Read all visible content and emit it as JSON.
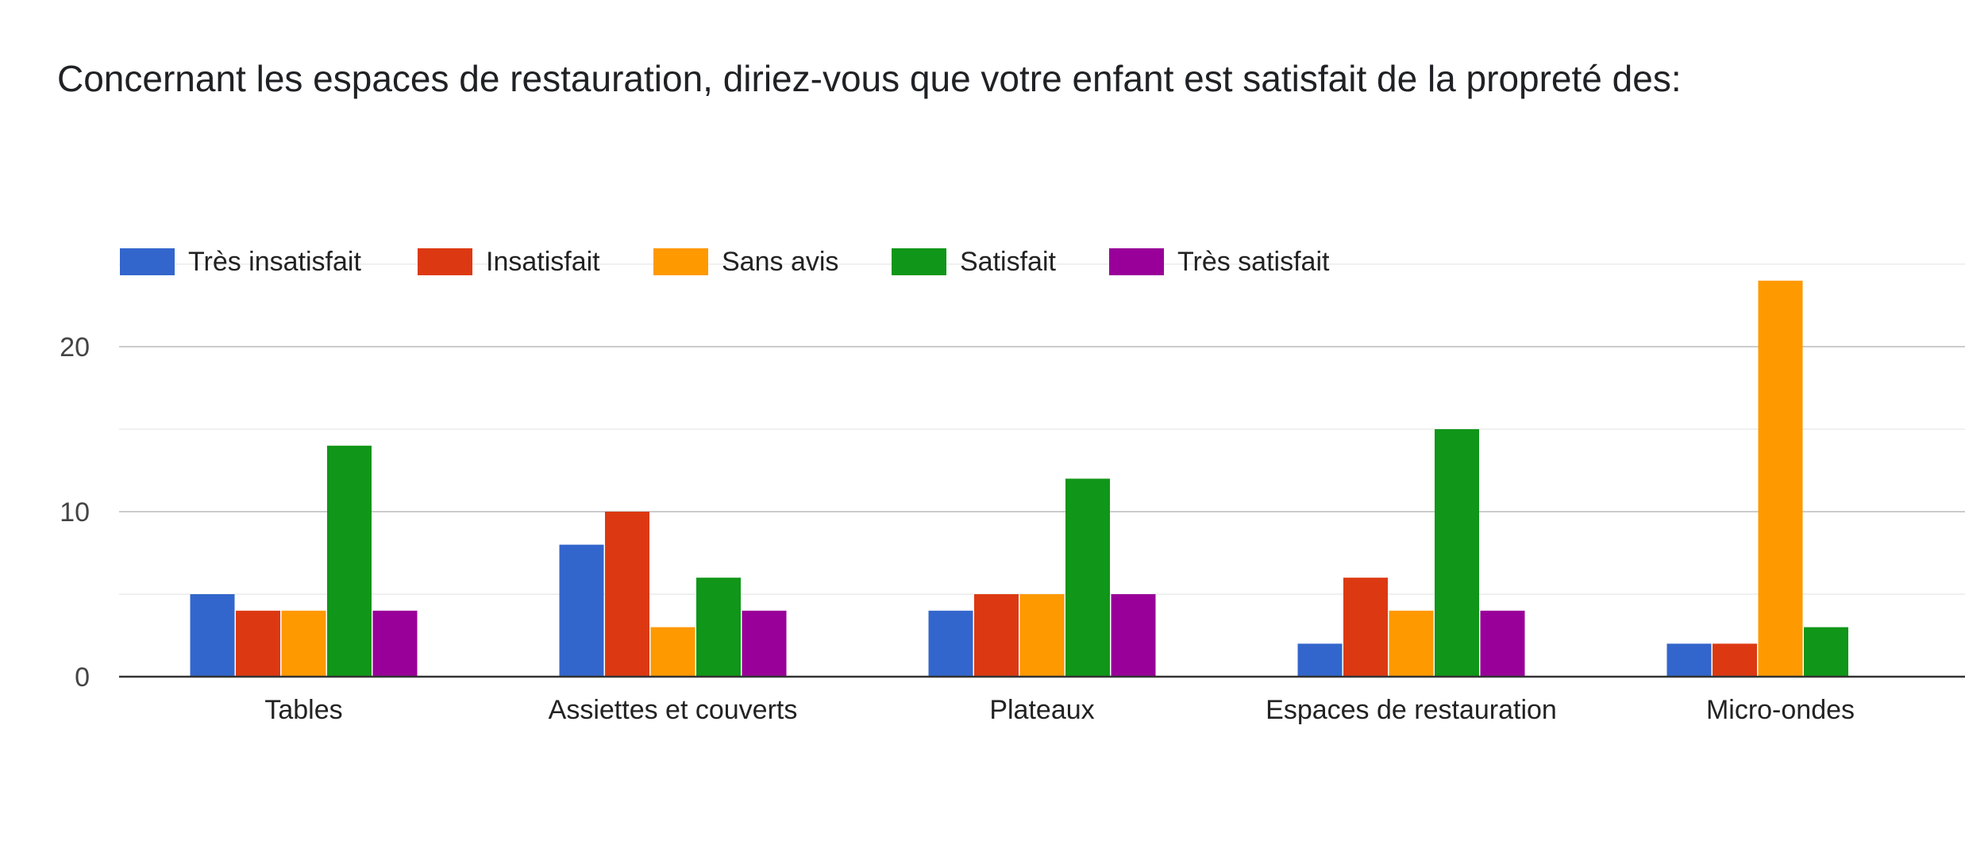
{
  "chart_data": {
    "type": "bar",
    "title": "Concernant les espaces de restauration, diriez-vous que votre enfant est satisfait de la propreté des:",
    "xlabel": "",
    "ylabel": "",
    "categories": [
      "Tables",
      "Assiettes et couverts",
      "Plateaux",
      "Espaces de restauration",
      "Micro-ondes"
    ],
    "series": [
      {
        "name": "Très insatisfait",
        "color": "#3366cc",
        "values": [
          5,
          8,
          4,
          2,
          2
        ]
      },
      {
        "name": "Insatisfait",
        "color": "#dc3912",
        "values": [
          4,
          10,
          5,
          6,
          2
        ]
      },
      {
        "name": "Sans avis",
        "color": "#ff9900",
        "values": [
          4,
          3,
          5,
          4,
          24
        ]
      },
      {
        "name": "Satisfait",
        "color": "#109618",
        "values": [
          14,
          6,
          12,
          15,
          3
        ]
      },
      {
        "name": "Très satisfait",
        "color": "#990099",
        "values": [
          4,
          4,
          5,
          4,
          0
        ]
      }
    ],
    "ylim": [
      0,
      25
    ],
    "yticks": [
      0,
      10,
      20
    ],
    "grid": true,
    "legend_position": "top-left"
  }
}
